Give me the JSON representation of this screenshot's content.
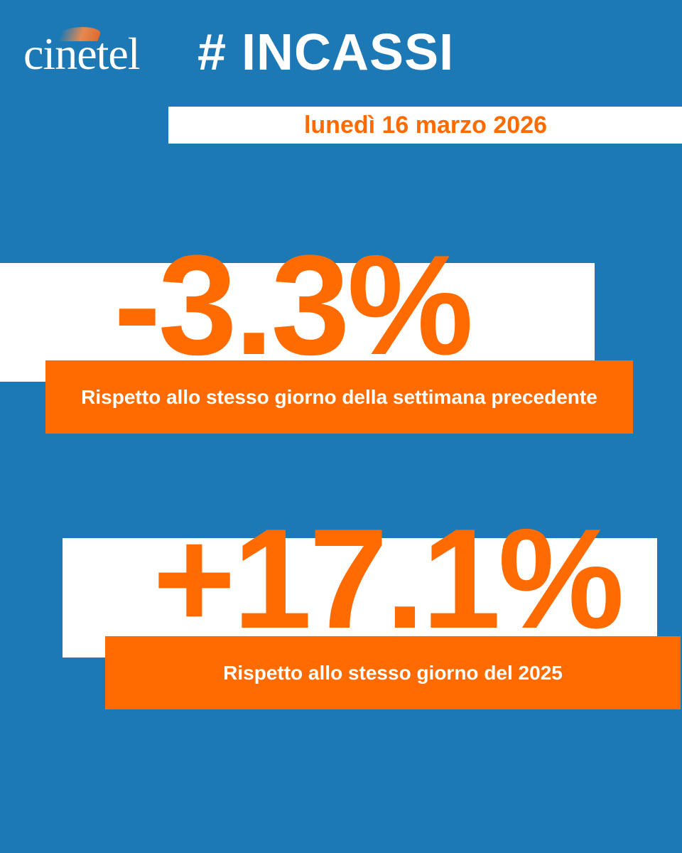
{
  "brand": {
    "logo_text": "cinetel",
    "hashtag": "# INCASSI",
    "accent_color": "#ff6b00",
    "background_color": "#1c79b5"
  },
  "date": "lunedì 16 marzo 2026",
  "stats": [
    {
      "value": "-3.3%",
      "caption": "Rispetto allo stesso giorno della settimana precedente"
    },
    {
      "value": "+17.1%",
      "caption": "Rispetto allo stesso giorno del 2025"
    }
  ]
}
